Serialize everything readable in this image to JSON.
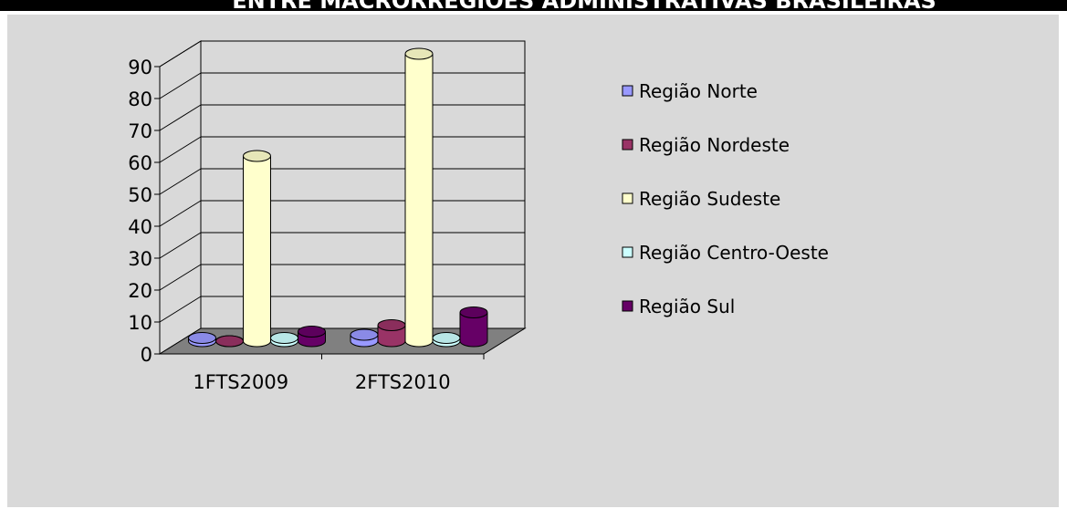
{
  "chart_data": {
    "type": "bar3d",
    "title": "ENTRE MACRORREGIÕES ADMINISTRATIVAS BRASILEIRAS",
    "categories": [
      "1FTS2009",
      "2FTS2010"
    ],
    "series": [
      {
        "name": "Região Norte",
        "color": "#9999ff",
        "values": [
          1,
          2
        ]
      },
      {
        "name": "Região Nordeste",
        "color": "#993366",
        "values": [
          0,
          5
        ]
      },
      {
        "name": "Região Sudeste",
        "color": "#ffffcc",
        "values": [
          58,
          90
        ]
      },
      {
        "name": "Região Centro-Oeste",
        "color": "#ccffff",
        "values": [
          1,
          1
        ]
      },
      {
        "name": "Região Sul",
        "color": "#660066",
        "values": [
          3,
          9
        ]
      }
    ],
    "ylim": [
      0,
      90
    ],
    "yticks": [
      0,
      10,
      20,
      30,
      40,
      50,
      60,
      70,
      80,
      90
    ],
    "grid": true,
    "legend": "right"
  }
}
